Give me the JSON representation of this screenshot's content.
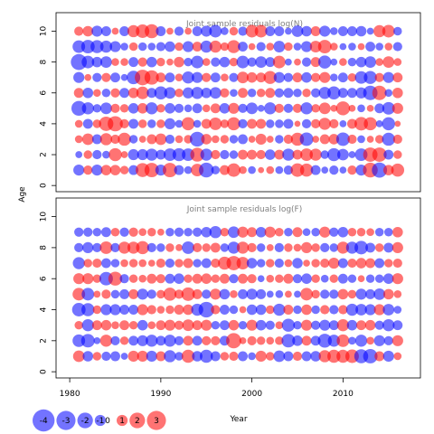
{
  "chart_data": {
    "type": "scatter",
    "subtype": "bubble residual plot (two panels)",
    "xlabel": "Year",
    "ylabel": "Age",
    "x_ticks": [
      1980,
      1990,
      2000,
      2010
    ],
    "y_ticks": [
      0,
      2,
      4,
      6,
      8,
      10
    ],
    "xlim": [
      1978.5,
      2018.5
    ],
    "years": [
      1981,
      1982,
      1983,
      1984,
      1985,
      1986,
      1987,
      1988,
      1989,
      1990,
      1991,
      1992,
      1993,
      1994,
      1995,
      1996,
      1997,
      1998,
      1999,
      2000,
      2001,
      2002,
      2003,
      2004,
      2005,
      2006,
      2007,
      2008,
      2009,
      2010,
      2011,
      2012,
      2013,
      2014,
      2015,
      2016
    ],
    "colors": {
      "positive": "#ff0000",
      "negative": "#0000ff",
      "fill_opacity": 0.55
    },
    "panels": [
      {
        "title": "Joint sample residuals log(N)",
        "ylim": [
          -0.4,
          11.2
        ],
        "ages": [
          1,
          2,
          3,
          4,
          5,
          6,
          7,
          8,
          9,
          10
        ],
        "residuals_by_age": {
          "1": [
            -1.0,
            0.7,
            -1.0,
            0.9,
            0.9,
            0.6,
            -0.8,
            1.6,
            1.7,
            -1.0,
            1.7,
            -0.8,
            -0.5,
            1.3,
            -1.8,
            -0.6,
            0.8,
            1.5,
            0.5,
            -0.5,
            0.3,
            0.5,
            -0.5,
            -0.7,
            1.5,
            1.4,
            -0.8,
            -0.4,
            -0.7,
            -0.4,
            0.7,
            -1.0,
            1.8,
            -1.9,
            0.9,
            1.4
          ],
          "2": [
            -0.4,
            0.6,
            -0.7,
            -0.5,
            1.4,
            0.4,
            -1.0,
            -1.0,
            -1.2,
            -0.8,
            -1.3,
            -1.4,
            -1.3,
            1.6,
            -1.2,
            0.7,
            -0.7,
            -0.6,
            0.8,
            0.8,
            0.7,
            -0.9,
            0.8,
            -1.2,
            0.8,
            1.3,
            1.2,
            -0.6,
            -1.4,
            -1.1,
            -0.4,
            -1.3,
            1.7,
            1.7,
            -0.8,
            0.6
          ],
          "3": [
            0.5,
            1.1,
            -0.8,
            1.2,
            0.7,
            1.4,
            -0.6,
            0.4,
            0.8,
            1.1,
            -0.7,
            0.5,
            0.6,
            -1.8,
            0.9,
            0.5,
            0.6,
            -0.6,
            -0.8,
            0.4,
            1.0,
            0.4,
            -0.6,
            0.7,
            1.4,
            -1.5,
            0.4,
            0.8,
            0.9,
            -1.5,
            0.7,
            -0.5,
            0.4,
            0.6,
            -1.4,
            0.7
          ],
          "4": [
            0.5,
            -0.8,
            0.6,
            1.7,
            1.9,
            0.7,
            -0.8,
            0.6,
            -0.6,
            0.6,
            -1.0,
            -0.5,
            1.4,
            -0.5,
            0.8,
            1.3,
            0.6,
            1.4,
            -0.7,
            0.8,
            0.8,
            -0.6,
            -0.6,
            -0.8,
            0.3,
            -0.7,
            0.7,
            1.2,
            0.7,
            -0.4,
            0.8,
            1.5,
            1.4,
            -0.4,
            -1.4,
            0.3
          ],
          "5": [
            -1.8,
            -1.2,
            -0.6,
            -1.1,
            0.7,
            0.6,
            -0.9,
            0.9,
            -1.2,
            0.6,
            -0.9,
            -0.7,
            -0.5,
            -0.8,
            0.5,
            0.8,
            -0.9,
            1.0,
            -0.7,
            -1.1,
            -0.4,
            -1.2,
            0.7,
            -0.7,
            0.7,
            -1.2,
            0.6,
            1.1,
            0.4,
            1.6,
            0.4,
            -0.5,
            0.4,
            -0.8,
            -1.3,
            1.0
          ],
          "6": [
            0.8,
            -0.9,
            0.5,
            -0.6,
            0.7,
            -0.8,
            0.9,
            1.3,
            -0.8,
            -1.4,
            -1.1,
            0.6,
            -1.0,
            -1.2,
            -0.9,
            -1.1,
            0.7,
            -0.5,
            0.8,
            -0.6,
            0.6,
            0.8,
            -0.7,
            -0.8,
            -0.6,
            0.6,
            -0.7,
            -1.2,
            -1.4,
            -0.8,
            -0.8,
            -1.0,
            -1.7,
            1.7,
            -0.5,
            0.9
          ],
          "7": [
            -1.0,
            0.4,
            -0.7,
            0.7,
            -0.8,
            -0.4,
            -1.5,
            2.0,
            1.7,
            0.8,
            -0.8,
            0.5,
            -1.2,
            -1.0,
            0.7,
            -0.8,
            0.5,
            -0.7,
            1.1,
            0.9,
            0.8,
            1.4,
            -1.0,
            -0.7,
            0.8,
            -0.9,
            0.7,
            1.0,
            -0.5,
            -0.8,
            0.6,
            -1.3,
            -1.4,
            0.7,
            -1.0,
            0.8
          ],
          "8": [
            -2.1,
            -1.3,
            -0.9,
            -1.1,
            0.5,
            0.5,
            -0.8,
            0.7,
            -0.9,
            0.6,
            0.4,
            0.9,
            -0.6,
            -1.3,
            0.5,
            -0.7,
            -0.9,
            0.6,
            -1.3,
            -0.7,
            -1.1,
            -0.8,
            1.3,
            -0.4,
            0.4,
            -0.7,
            0.8,
            -1.4,
            -0.4,
            0.5,
            -0.6,
            -0.9,
            -1.1,
            0.5,
            1.1,
            0.5
          ],
          "9": [
            -1.3,
            -1.5,
            -1.4,
            -1.2,
            -1.0,
            -0.5,
            0.6,
            -0.6,
            -0.5,
            -0.7,
            -0.9,
            0.6,
            -1.0,
            0.8,
            -1.2,
            1.2,
            0.6,
            1.4,
            -0.8,
            0.4,
            -0.7,
            0.5,
            -1.1,
            0.6,
            -0.5,
            -1.0,
            1.1,
            1.5,
            0.5,
            -0.4,
            -0.5,
            0.4,
            -0.8,
            -0.5,
            0.5,
            -0.7
          ],
          "10": [
            0.7,
            0.9,
            -1.0,
            -0.8,
            0.4,
            -0.8,
            1.2,
            1.5,
            1.6,
            -0.8,
            0.4,
            -0.7,
            0.4,
            -0.8,
            -1.0,
            -1.3,
            -0.5,
            0.6,
            -0.7,
            1.3,
            1.3,
            -0.8,
            -0.8,
            -0.4,
            -1.1,
            -0.9,
            0.8,
            -1.0,
            -0.5,
            -0.8,
            -0.8,
            -0.9,
            -0.4,
            1.2,
            1.3,
            -0.6
          ]
        }
      },
      {
        "title": "Joint sample residuals log(F)",
        "ylim": [
          -0.4,
          11.2
        ],
        "ages": [
          1,
          2,
          3,
          4,
          5,
          6,
          7,
          8,
          9
        ],
        "residuals_by_age": {
          "1": [
            1.1,
            -0.9,
            0.6,
            -0.7,
            -0.8,
            -0.4,
            1.0,
            1.0,
            -1.0,
            0.8,
            -1.2,
            -0.6,
            1.4,
            -0.9,
            -1.4,
            -0.8,
            0.6,
            0.7,
            -0.8,
            -0.5,
            1.0,
            0.6,
            -1.1,
            -0.8,
            0.7,
            -0.8,
            -0.9,
            1.2,
            1.4,
            1.4,
            1.5,
            -1.6,
            -1.7,
            0.8,
            -1.0,
            0.5
          ],
          "2": [
            -1.3,
            -1.5,
            -0.4,
            1.2,
            -0.7,
            0.6,
            -0.8,
            -1.0,
            -1.2,
            -0.8,
            -1.2,
            -0.7,
            0.8,
            -0.8,
            0.7,
            0.7,
            -0.8,
            1.9,
            0.4,
            0.7,
            0.6,
            0.5,
            0.6,
            -1.5,
            -0.9,
            0.8,
            -0.8,
            -1.6,
            -1.2,
            1.3,
            -0.5,
            -1.2,
            0.5,
            -1.0,
            -0.7,
            1.0
          ],
          "3": [
            0.6,
            -1.2,
            0.8,
            0.9,
            0.5,
            0.8,
            0.6,
            -0.9,
            0.5,
            0.8,
            1.0,
            0.7,
            1.1,
            0.8,
            1.0,
            -0.6,
            -0.8,
            0.9,
            -0.6,
            1.0,
            -0.9,
            -0.7,
            0.5,
            -1.4,
            -0.6,
            1.0,
            -0.7,
            -1.0,
            -0.8,
            1.2,
            -0.9,
            0.8,
            0.9,
            -0.7,
            -1.2,
            -0.8
          ],
          "4": [
            -1.5,
            -1.4,
            0.6,
            -1.0,
            -1.0,
            -0.8,
            -0.8,
            1.0,
            0.7,
            0.5,
            0.6,
            0.8,
            0.9,
            -1.2,
            -2.0,
            0.7,
            -0.8,
            -0.6,
            0.4,
            -0.9,
            -0.9,
            0.6,
            -1.2,
            0.8,
            -0.6,
            0.9,
            -0.6,
            0.7,
            -0.7,
            0.7,
            -1.2,
            -1.1,
            -1.0,
            1.0,
            -1.1,
            -0.5
          ],
          "5": [
            1.3,
            -1.3,
            0.4,
            0.7,
            -0.6,
            -0.8,
            0.8,
            -1.0,
            -0.7,
            0.6,
            1.4,
            0.7,
            1.5,
            0.8,
            -0.7,
            1.0,
            -0.9,
            0.5,
            -0.8,
            -1.0,
            -0.8,
            -0.4,
            -0.5,
            0.4,
            -0.4,
            1.3,
            0.6,
            -0.7,
            -0.7,
            0.9,
            0.6,
            -1.0,
            -0.8,
            -1.1,
            0.9,
            0.5
          ],
          "6": [
            1.0,
            1.0,
            0.6,
            -1.5,
            1.6,
            -0.7,
            0.6,
            0.5,
            0.8,
            0.7,
            -0.8,
            -0.9,
            0.6,
            0.8,
            0.9,
            0.6,
            0.8,
            -0.7,
            0.8,
            0.7,
            -0.4,
            0.5,
            0.6,
            0.8,
            -0.7,
            -0.9,
            0.6,
            -0.5,
            0.6,
            -0.8,
            -0.6,
            0.4,
            -0.6,
            -0.6,
            -0.9,
            1.0
          ],
          "7": [
            -1.2,
            0.6,
            0.7,
            -0.8,
            -0.6,
            0.5,
            0.6,
            0.5,
            0.4,
            0.7,
            -0.7,
            0.6,
            0.8,
            -0.6,
            -0.8,
            0.7,
            1.4,
            1.7,
            1.3,
            -0.9,
            -0.6,
            0.6,
            -0.7,
            0.5,
            -0.9,
            0.4,
            0.6,
            0.7,
            1.0,
            -0.8,
            0.7,
            0.9,
            0.8,
            -0.8,
            0.6,
            0.7
          ],
          "8": [
            -0.7,
            -1.0,
            -0.7,
            1.3,
            -0.7,
            1.2,
            1.2,
            1.4,
            -0.7,
            -0.6,
            0.6,
            0.4,
            -1.3,
            0.7,
            0.6,
            0.8,
            -0.6,
            -1.2,
            1.2,
            0.7,
            -0.6,
            0.4,
            -0.7,
            0.6,
            0.5,
            1.0,
            0.6,
            -0.7,
            -0.6,
            1.2,
            -1.2,
            -1.5,
            -0.8,
            0.6,
            -0.8,
            1.0
          ],
          "9": [
            -0.7,
            -0.7,
            -0.6,
            -0.8,
            0.6,
            -0.7,
            0.7,
            0.5,
            0.6,
            0.4,
            -0.6,
            -0.7,
            -0.6,
            -0.7,
            -0.9,
            -1.2,
            0.6,
            -1.1,
            1.0,
            0.8,
            -0.9,
            1.0,
            0.6,
            -0.6,
            0.8,
            -0.5,
            -0.6,
            1.0,
            -0.7,
            -0.9,
            0.6,
            0.6,
            0.5,
            -0.6,
            -0.6,
            0.9
          ]
        }
      }
    ],
    "legend": {
      "position": "bottom-left",
      "entries": [
        "-4",
        "-3",
        "-2",
        "-1",
        "0",
        "1",
        "2",
        "3"
      ],
      "values": [
        -4,
        -3,
        -2,
        -1,
        0,
        1,
        2,
        3
      ]
    }
  }
}
